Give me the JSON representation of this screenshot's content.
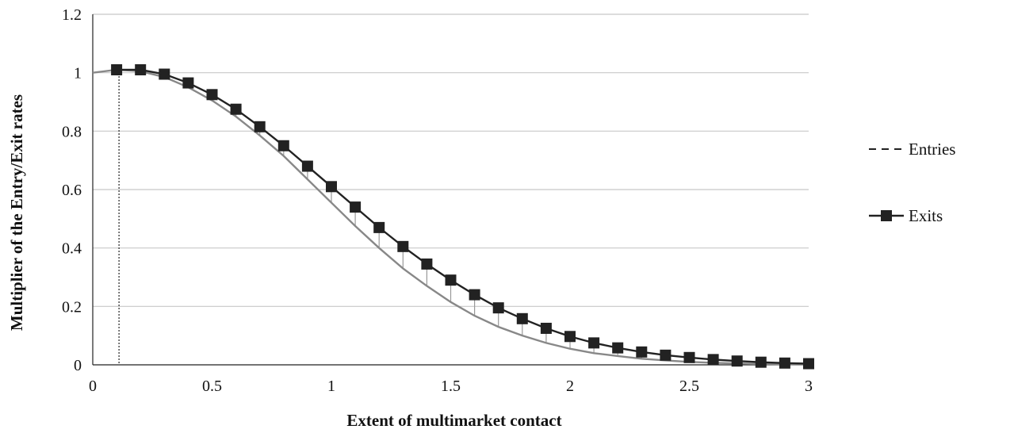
{
  "chart_data": {
    "type": "line",
    "title": "",
    "xlabel": "Extent of multimarket contact",
    "ylabel": "Multiplier of the Entry/Exit rates",
    "xlim": [
      0,
      3
    ],
    "ylim": [
      0,
      1.2
    ],
    "x_ticks": [
      "0",
      "0.5",
      "1",
      "1.5",
      "2",
      "2.5",
      "3"
    ],
    "y_ticks": [
      "0",
      "0.2",
      "0.4",
      "0.6",
      "0.8",
      "1",
      "1.2"
    ],
    "grid": "horizontal",
    "legend_position": "right",
    "colors": {
      "exits": "#222222",
      "entries": "#888888",
      "grid": "#c8c8c8"
    },
    "entries_peak_marker_x": 0.11,
    "series": [
      {
        "name": "Entries",
        "style": "line",
        "x": [
          0,
          0.1,
          0.2,
          0.3,
          0.4,
          0.5,
          0.6,
          0.7,
          0.8,
          0.9,
          1.0,
          1.1,
          1.2,
          1.3,
          1.4,
          1.5,
          1.6,
          1.7,
          1.8,
          1.9,
          2.0,
          2.1,
          2.2,
          2.3,
          2.4,
          2.5,
          2.6,
          2.7,
          2.8,
          2.9,
          3.0
        ],
        "values": [
          1.0,
          1.01,
          1.005,
          0.985,
          0.95,
          0.905,
          0.85,
          0.785,
          0.715,
          0.635,
          0.555,
          0.475,
          0.4,
          0.33,
          0.27,
          0.215,
          0.168,
          0.13,
          0.1,
          0.075,
          0.055,
          0.04,
          0.03,
          0.021,
          0.015,
          0.01,
          0.007,
          0.005,
          0.003,
          0.002,
          0.001
        ]
      },
      {
        "name": "Exits",
        "style": "line-square",
        "x": [
          0.1,
          0.2,
          0.3,
          0.4,
          0.5,
          0.6,
          0.7,
          0.8,
          0.9,
          1.0,
          1.1,
          1.2,
          1.3,
          1.4,
          1.5,
          1.6,
          1.7,
          1.8,
          1.9,
          2.0,
          2.1,
          2.2,
          2.3,
          2.4,
          2.5,
          2.6,
          2.7,
          2.8,
          2.9,
          3.0
        ],
        "values": [
          1.01,
          1.01,
          0.995,
          0.965,
          0.925,
          0.875,
          0.815,
          0.75,
          0.68,
          0.61,
          0.54,
          0.47,
          0.405,
          0.345,
          0.29,
          0.24,
          0.195,
          0.158,
          0.125,
          0.097,
          0.075,
          0.058,
          0.044,
          0.033,
          0.025,
          0.018,
          0.013,
          0.009,
          0.006,
          0.004
        ]
      }
    ]
  }
}
